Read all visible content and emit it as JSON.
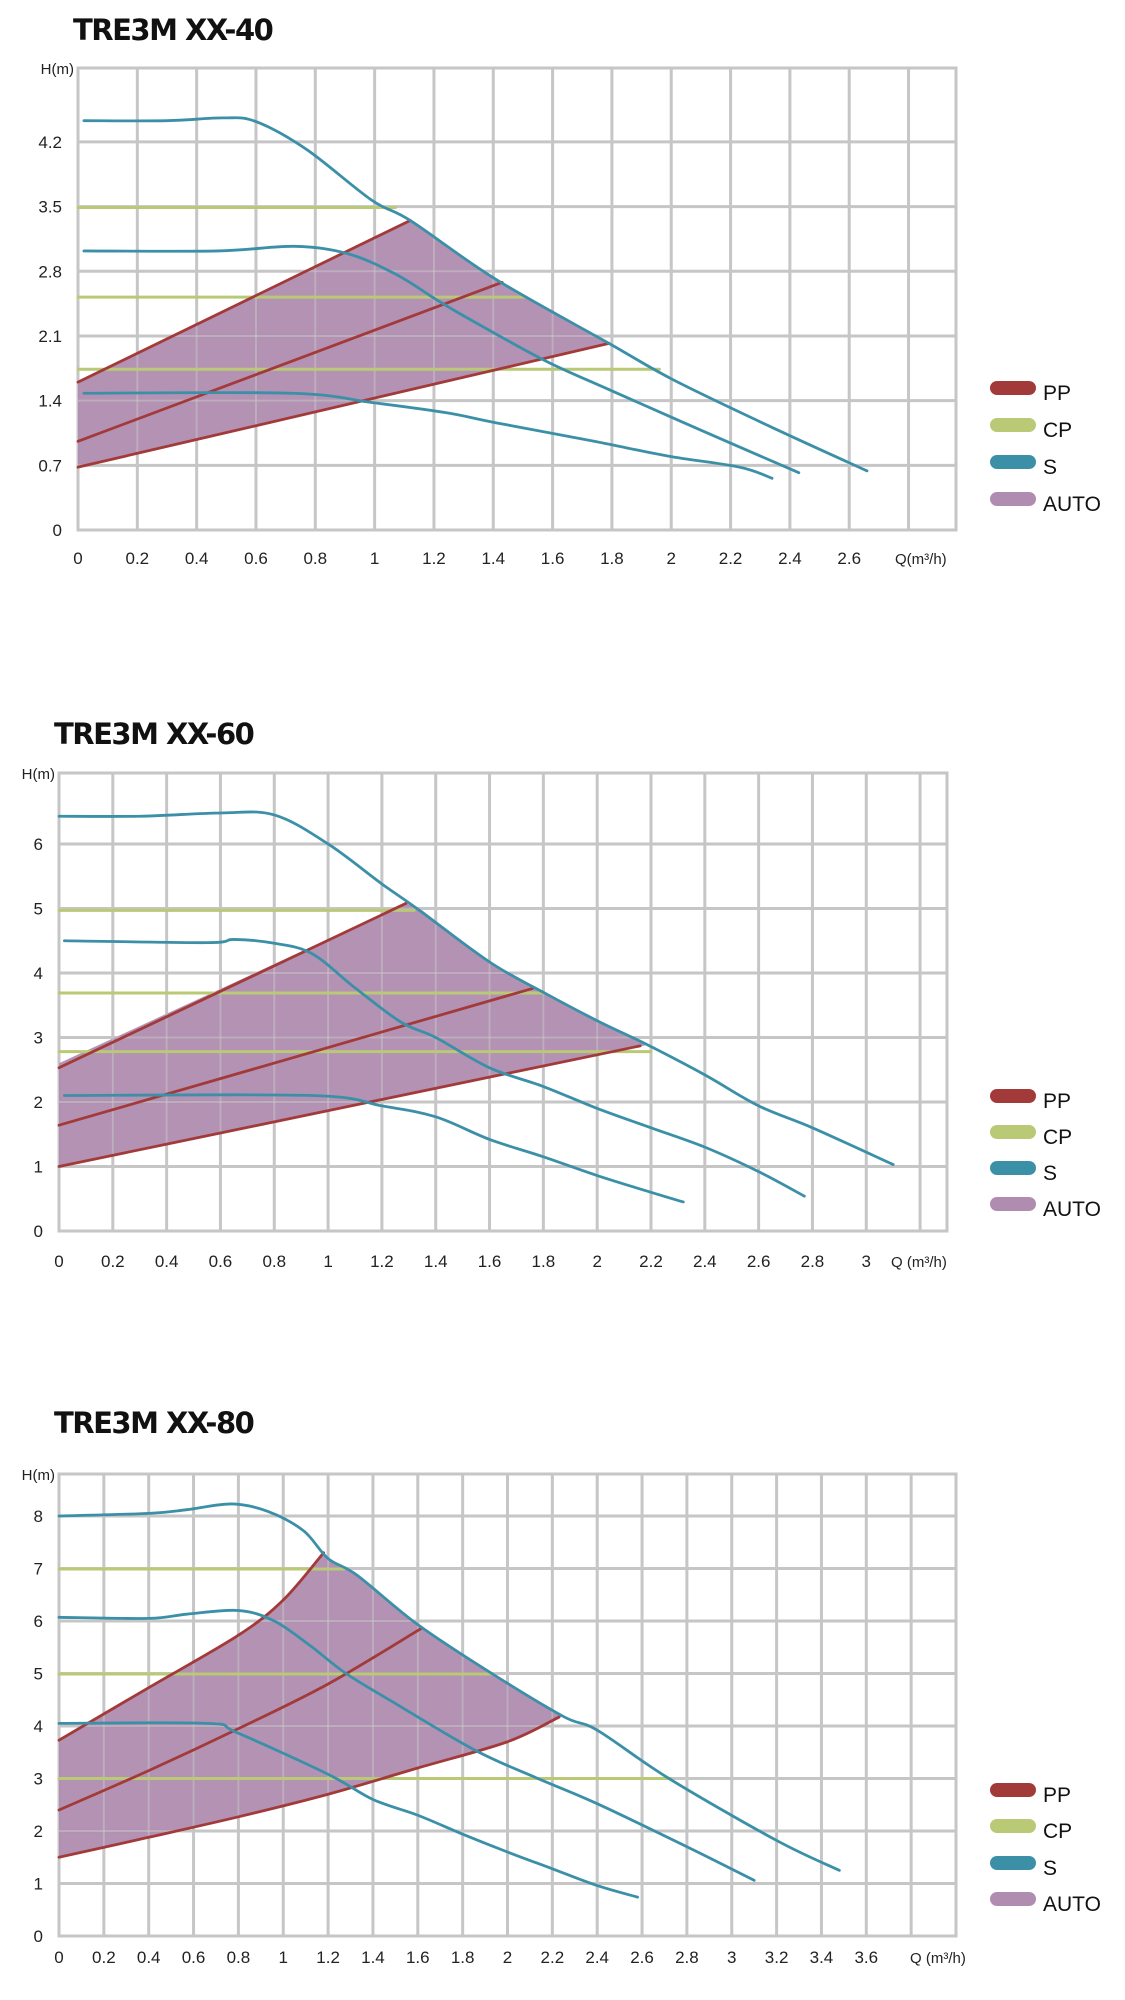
{
  "colors": {
    "PP": "#a33a3a",
    "CP": "#b9c975",
    "S": "#3b90a8",
    "AUTO": "#b08cb0",
    "grid": "#c6c6c6"
  },
  "chart_data": [
    {
      "type": "line",
      "title": "TRE3M XX-40",
      "ylabel": "H(m)",
      "xlabel": "Q(m³/h)",
      "xlim": [
        0,
        2.96
      ],
      "ylim": [
        0,
        5.0
      ],
      "grid": true,
      "legend_placement": "right",
      "x_ticks": [
        "0",
        "0.2",
        "0.4",
        "0.6",
        "0.8",
        "1",
        "1.2",
        "1.4",
        "1.6",
        "1.8",
        "2",
        "2.2",
        "2.4",
        "2.6"
      ],
      "y_ticks": [
        "0",
        "0.7",
        "1.4",
        "2.1",
        "2.8",
        "3.5",
        "4.2"
      ],
      "legend": [
        "PP",
        "CP",
        "S",
        "AUTO"
      ],
      "auto_region": [
        [
          0,
          1.6
        ],
        [
          1.12,
          3.35
        ],
        [
          1.41,
          2.71
        ],
        [
          1.79,
          2.02
        ],
        [
          0,
          0.68
        ]
      ],
      "series": [
        {
          "name": "PP",
          "lines": [
            [
              [
                0,
                1.6
              ],
              [
                1.12,
                3.35
              ]
            ],
            [
              [
                0,
                0.96
              ],
              [
                1.43,
                2.68
              ]
            ],
            [
              [
                0,
                0.68
              ],
              [
                1.79,
                2.02
              ]
            ]
          ]
        },
        {
          "name": "CP",
          "lines": [
            [
              [
                0,
                3.49
              ],
              [
                1.07,
                3.49
              ]
            ],
            [
              [
                0,
                2.52
              ],
              [
                1.51,
                2.52
              ]
            ],
            [
              [
                0,
                1.74
              ],
              [
                1.96,
                1.74
              ]
            ]
          ]
        },
        {
          "name": "S",
          "lines": [
            [
              [
                0.02,
                4.43
              ],
              [
                0.3,
                4.43
              ],
              [
                0.49,
                4.46
              ],
              [
                0.6,
                4.42
              ],
              [
                0.77,
                4.12
              ],
              [
                0.99,
                3.57
              ],
              [
                1.12,
                3.35
              ],
              [
                1.41,
                2.71
              ],
              [
                1.79,
                2.02
              ],
              [
                2.01,
                1.62
              ],
              [
                2.34,
                1.11
              ],
              [
                2.66,
                0.64
              ]
            ],
            [
              [
                0.02,
                3.02
              ],
              [
                0.47,
                3.02
              ],
              [
                0.73,
                3.07
              ],
              [
                0.91,
                2.99
              ],
              [
                1.07,
                2.77
              ],
              [
                1.21,
                2.49
              ],
              [
                1.31,
                2.3
              ],
              [
                1.57,
                1.84
              ],
              [
                1.79,
                1.52
              ],
              [
                2.1,
                1.08
              ],
              [
                2.43,
                0.62
              ]
            ],
            [
              [
                0.02,
                1.48
              ],
              [
                0.72,
                1.48
              ],
              [
                0.99,
                1.38
              ],
              [
                1.24,
                1.27
              ],
              [
                1.41,
                1.16
              ],
              [
                1.74,
                0.96
              ],
              [
                1.99,
                0.8
              ],
              [
                2.23,
                0.68
              ],
              [
                2.34,
                0.56
              ]
            ]
          ]
        }
      ]
    },
    {
      "type": "line",
      "title": "TRE3M XX-60",
      "ylabel": "H(m)",
      "xlabel": "Q (m³/h)",
      "xlim": [
        0,
        3.3
      ],
      "ylim": [
        0,
        7.1
      ],
      "grid": true,
      "legend_placement": "right",
      "x_ticks": [
        "0",
        "0.2",
        "0.4",
        "0.6",
        "0.8",
        "1",
        "1.2",
        "1.4",
        "1.6",
        "1.8",
        "2",
        "2.2",
        "2.4",
        "2.6",
        "2.8",
        "3"
      ],
      "y_ticks": [
        "0",
        "1",
        "2",
        "3",
        "4",
        "5",
        "6"
      ],
      "legend": [
        "PP",
        "CP",
        "S",
        "AUTO"
      ],
      "auto_region": [
        [
          0,
          2.6
        ],
        [
          1.29,
          5.08
        ],
        [
          1.35,
          4.97
        ],
        [
          1.6,
          4.17
        ],
        [
          1.8,
          3.7
        ],
        [
          2.0,
          3.26
        ],
        [
          2.18,
          2.88
        ],
        [
          0,
          1.0
        ]
      ],
      "series": [
        {
          "name": "PP",
          "lines": [
            [
              [
                0,
                2.53
              ],
              [
                1.29,
                5.08
              ]
            ],
            [
              [
                0,
                1.64
              ],
              [
                1.76,
                3.76
              ]
            ],
            [
              [
                0,
                1.0
              ],
              [
                2.16,
                2.87
              ]
            ]
          ]
        },
        {
          "name": "CP",
          "lines": [
            [
              [
                0,
                4.97
              ],
              [
                1.32,
                4.97
              ]
            ],
            [
              [
                0,
                3.69
              ],
              [
                1.8,
                3.69
              ]
            ],
            [
              [
                0,
                2.78
              ],
              [
                2.2,
                2.78
              ]
            ]
          ]
        },
        {
          "name": "S",
          "lines": [
            [
              [
                0,
                6.43
              ],
              [
                0.3,
                6.43
              ],
              [
                0.6,
                6.48
              ],
              [
                0.8,
                6.45
              ],
              [
                1.0,
                6.0
              ],
              [
                1.2,
                5.38
              ],
              [
                1.33,
                5.0
              ],
              [
                1.6,
                4.17
              ],
              [
                1.8,
                3.7
              ],
              [
                2.0,
                3.26
              ],
              [
                2.18,
                2.9
              ],
              [
                2.4,
                2.42
              ],
              [
                2.6,
                1.94
              ],
              [
                2.8,
                1.6
              ],
              [
                3.1,
                1.03
              ]
            ],
            [
              [
                0.02,
                4.5
              ],
              [
                0.55,
                4.47
              ],
              [
                0.65,
                4.52
              ],
              [
                0.8,
                4.46
              ],
              [
                0.94,
                4.3
              ],
              [
                1.1,
                3.77
              ],
              [
                1.27,
                3.24
              ],
              [
                1.4,
                3.0
              ],
              [
                1.6,
                2.53
              ],
              [
                1.8,
                2.24
              ],
              [
                2.0,
                1.9
              ],
              [
                2.2,
                1.6
              ],
              [
                2.4,
                1.3
              ],
              [
                2.6,
                0.92
              ],
              [
                2.77,
                0.54
              ]
            ],
            [
              [
                0.02,
                2.1
              ],
              [
                0.94,
                2.1
              ],
              [
                1.2,
                1.94
              ],
              [
                1.4,
                1.77
              ],
              [
                1.6,
                1.42
              ],
              [
                1.8,
                1.15
              ],
              [
                2.0,
                0.86
              ],
              [
                2.2,
                0.6
              ],
              [
                2.32,
                0.45
              ]
            ]
          ]
        }
      ]
    },
    {
      "type": "line",
      "title": "TRE3M XX-80",
      "ylabel": "H(m)",
      "xlabel": "Q (m³/h)",
      "xlim": [
        0,
        4.0
      ],
      "ylim": [
        0,
        8.8
      ],
      "grid": true,
      "legend_placement": "right",
      "x_ticks": [
        "0",
        "0.2",
        "0.4",
        "0.6",
        "0.8",
        "1",
        "1.2",
        "1.4",
        "1.6",
        "1.8",
        "2",
        "2.2",
        "2.4",
        "2.6",
        "2.8",
        "3",
        "3.2",
        "3.4",
        "3.6"
      ],
      "y_ticks": [
        "0",
        "1",
        "2",
        "3",
        "4",
        "5",
        "6",
        "7",
        "8"
      ],
      "legend": [
        "PP",
        "CP",
        "S",
        "AUTO"
      ],
      "auto_region": [
        [
          0,
          1.5
        ],
        [
          0,
          3.73
        ],
        [
          0.4,
          4.73
        ],
        [
          0.8,
          5.73
        ],
        [
          1.0,
          6.4
        ],
        [
          1.18,
          7.3
        ],
        [
          1.2,
          7.19
        ],
        [
          1.33,
          6.87
        ],
        [
          1.6,
          5.93
        ],
        [
          1.93,
          5.0
        ],
        [
          2.25,
          4.18
        ],
        [
          2.23,
          4.17
        ],
        [
          2.0,
          3.7
        ],
        [
          1.6,
          3.2
        ],
        [
          1.2,
          2.7
        ],
        [
          0.8,
          2.27
        ],
        [
          0.4,
          1.88
        ]
      ],
      "series": [
        {
          "name": "PP",
          "lines": [
            [
              [
                0,
                3.73
              ],
              [
                0.4,
                4.73
              ],
              [
                0.8,
                5.73
              ],
              [
                1.0,
                6.4
              ],
              [
                1.18,
                7.3
              ]
            ],
            [
              [
                0,
                2.4
              ],
              [
                0.4,
                3.15
              ],
              [
                0.8,
                3.95
              ],
              [
                1.2,
                4.8
              ],
              [
                1.62,
                5.87
              ]
            ],
            [
              [
                0,
                1.5
              ],
              [
                0.4,
                1.88
              ],
              [
                0.8,
                2.27
              ],
              [
                1.2,
                2.7
              ],
              [
                1.6,
                3.2
              ],
              [
                2.0,
                3.7
              ],
              [
                2.23,
                4.17
              ]
            ]
          ]
        },
        {
          "name": "CP",
          "lines": [
            [
              [
                0,
                6.99
              ],
              [
                1.27,
                6.99
              ]
            ],
            [
              [
                0,
                4.99
              ],
              [
                1.93,
                4.99
              ]
            ],
            [
              [
                0,
                3.0
              ],
              [
                2.73,
                3.0
              ]
            ]
          ]
        },
        {
          "name": "S",
          "lines": [
            [
              [
                0,
                8.0
              ],
              [
                0.4,
                8.05
              ],
              [
                0.57,
                8.12
              ],
              [
                0.77,
                8.23
              ],
              [
                0.93,
                8.09
              ],
              [
                1.09,
                7.72
              ],
              [
                1.2,
                7.19
              ],
              [
                1.33,
                6.87
              ],
              [
                1.6,
                5.93
              ],
              [
                1.93,
                5.0
              ],
              [
                2.25,
                4.18
              ],
              [
                2.4,
                3.92
              ],
              [
                2.72,
                3.0
              ],
              [
                3.2,
                1.82
              ],
              [
                3.48,
                1.25
              ]
            ],
            [
              [
                0,
                6.07
              ],
              [
                0.4,
                6.05
              ],
              [
                0.57,
                6.13
              ],
              [
                0.8,
                6.2
              ],
              [
                0.96,
                6.0
              ],
              [
                1.12,
                5.53
              ],
              [
                1.28,
                5.0
              ],
              [
                1.48,
                4.48
              ],
              [
                1.85,
                3.55
              ],
              [
                2.13,
                3.01
              ],
              [
                2.4,
                2.52
              ],
              [
                2.8,
                1.7
              ],
              [
                3.1,
                1.06
              ]
            ],
            [
              [
                0,
                4.05
              ],
              [
                0.66,
                4.05
              ],
              [
                0.79,
                3.88
              ],
              [
                1.2,
                3.08
              ],
              [
                1.4,
                2.6
              ],
              [
                1.6,
                2.3
              ],
              [
                1.8,
                1.94
              ],
              [
                2.0,
                1.6
              ],
              [
                2.2,
                1.28
              ],
              [
                2.4,
                0.96
              ],
              [
                2.58,
                0.74
              ]
            ]
          ]
        }
      ]
    }
  ]
}
